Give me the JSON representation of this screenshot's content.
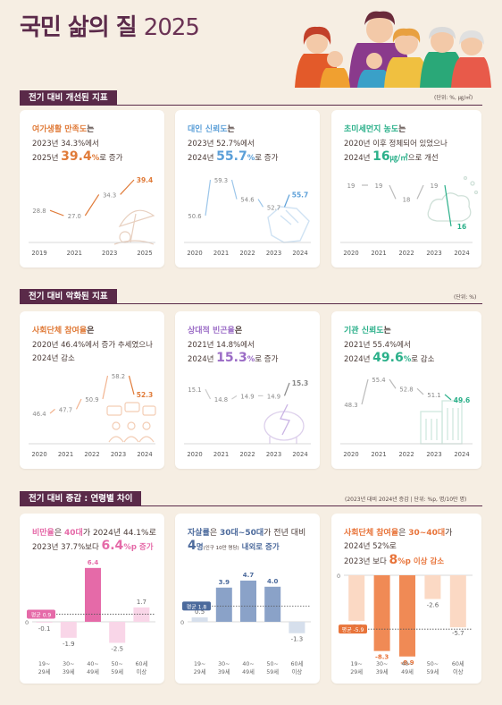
{
  "title": {
    "main": "국민 삶의 질",
    "year": "2025"
  },
  "colors": {
    "orange": "#e07b39",
    "blue": "#5b9fd8",
    "green": "#2bb08a",
    "pink": "#e56aa8",
    "navy": "#6c87b3",
    "coral": "#f08a55",
    "maroon": "#5a2a49"
  },
  "sections": [
    {
      "title": "전기 대비 개선된 지표",
      "unit": "(단위: %, ㎍/㎥)"
    },
    {
      "title": "전기 대비 악화된 지표",
      "unit": "(단위: %)"
    },
    {
      "title": "전기 대비 증감 : 연령별 차이",
      "unit": "(2023년 대비 2024년 증감 | 단위: %p, 명/10만 명)"
    }
  ],
  "cards": {
    "c1": {
      "head": "여가생활 만족도",
      "head_tail": "는",
      "line1": "2023년 34.3%에서",
      "line2_pre": "2025년 ",
      "line2_big": "39.4",
      "line2_unit": "%",
      "line2_post": "로 증가"
    },
    "c2": {
      "head": "대인 신뢰도",
      "head_tail": "는",
      "line1": "2023년 52.7%에서",
      "line2_pre": "2024년 ",
      "line2_big": "55.7",
      "line2_unit": "%",
      "line2_post": "로 증가"
    },
    "c3": {
      "head": "초미세먼지 농도",
      "head_tail": "는",
      "line1": "2020년 이후 정체되어 있었으나",
      "line2_pre": "2024년 ",
      "line2_big": "16",
      "line2_unit": "㎍/㎥",
      "line2_post": "으로 개선"
    },
    "c4": {
      "head": "사회단체 참여율",
      "head_tail": "은",
      "line1": "2020년 46.4%에서 증가 추세였으나",
      "line2": "2024년 감소"
    },
    "c5": {
      "head": "상대적 빈곤율",
      "head_tail": "은",
      "line1": "2021년 14.8%에서",
      "line2_pre": "2024년 ",
      "line2_big": "15.3",
      "line2_unit": "%",
      "line2_post": "로 증가"
    },
    "c6": {
      "head": "기관 신뢰도",
      "head_tail": "는",
      "line1": "2021년 55.4%에서",
      "line2_pre": "2024년 ",
      "line2_big": "49.6",
      "line2_unit": "%",
      "line2_post": "로 감소"
    },
    "c7": {
      "h1": "비만율",
      "h2": "은 ",
      "h3": "40대",
      "h4": "가 2024년 44.1%로",
      "l2_pre": "2023년 37.7%보다 ",
      "l2_big": "6.4",
      "l2_unit": "%p",
      "l2_post": " 증가",
      "avg_label": "평균 0.9"
    },
    "c8": {
      "h1": "자살률",
      "h2": "은 ",
      "h3": "30대~50대",
      "h4": "가 전년 대비",
      "l2_big": "4",
      "l2_unit": "명",
      "l2_small": "(인구 10만 명당)",
      "l2_post": " 내외로 증가",
      "avg_label": "평균 1.8"
    },
    "c9": {
      "h1": "사회단체 참여율",
      "h2": "은 ",
      "h3": "30~40대",
      "h4": "가",
      "l1b": "2024년 52%로",
      "l2_pre": "2023년 보다 ",
      "l2_big": "8",
      "l2_unit": "%p",
      "l2_post": " 이상 감소",
      "avg_label": "평균 -5.9"
    }
  },
  "chart_data": [
    {
      "type": "line",
      "x": [
        "2019",
        "2021",
        "2023",
        "2025"
      ],
      "series": [
        {
          "values": [
            28.8,
            27.0,
            34.3,
            39.4
          ]
        }
      ]
    },
    {
      "type": "line",
      "x": [
        "2020",
        "2021",
        "2022",
        "2023",
        "2024"
      ],
      "series": [
        {
          "values": [
            50.6,
            59.3,
            54.6,
            52.7,
            55.7
          ]
        }
      ]
    },
    {
      "type": "line",
      "x": [
        "2020",
        "2021",
        "2022",
        "2023",
        "2024"
      ],
      "series": [
        {
          "values": [
            19,
            19,
            18,
            19,
            16
          ]
        }
      ]
    },
    {
      "type": "line",
      "x": [
        "2020",
        "2021",
        "2022",
        "2023",
        "2024"
      ],
      "series": [
        {
          "values": [
            46.4,
            47.7,
            50.9,
            58.2,
            52.3
          ]
        }
      ]
    },
    {
      "type": "line",
      "x": [
        "2020",
        "2021",
        "2022",
        "2023",
        "2024"
      ],
      "series": [
        {
          "values": [
            15.1,
            14.8,
            14.9,
            14.9,
            15.3
          ]
        }
      ]
    },
    {
      "type": "line",
      "x": [
        "2020",
        "2021",
        "2022",
        "2023",
        "2024"
      ],
      "series": [
        {
          "values": [
            48.3,
            55.4,
            52.8,
            51.1,
            49.6
          ]
        }
      ]
    },
    {
      "type": "bar",
      "categories": [
        "19~29세",
        "30~39세",
        "40~49세",
        "50~59세",
        "60세 이상"
      ],
      "values": [
        -0.1,
        -1.9,
        6.4,
        -2.5,
        1.7
      ],
      "average": 0.9
    },
    {
      "type": "bar",
      "categories": [
        "19~29세",
        "30~39세",
        "40~49세",
        "50~59세",
        "60세 이상"
      ],
      "values": [
        0.5,
        3.9,
        4.7,
        4.0,
        -1.3
      ],
      "average": 1.8
    },
    {
      "type": "bar",
      "categories": [
        "19~29세",
        "30~39세",
        "40~49세",
        "50~59세",
        "60세 이상"
      ],
      "values": [
        -5.0,
        -8.3,
        -8.9,
        -2.6,
        -5.7
      ],
      "average": -5.9
    }
  ]
}
